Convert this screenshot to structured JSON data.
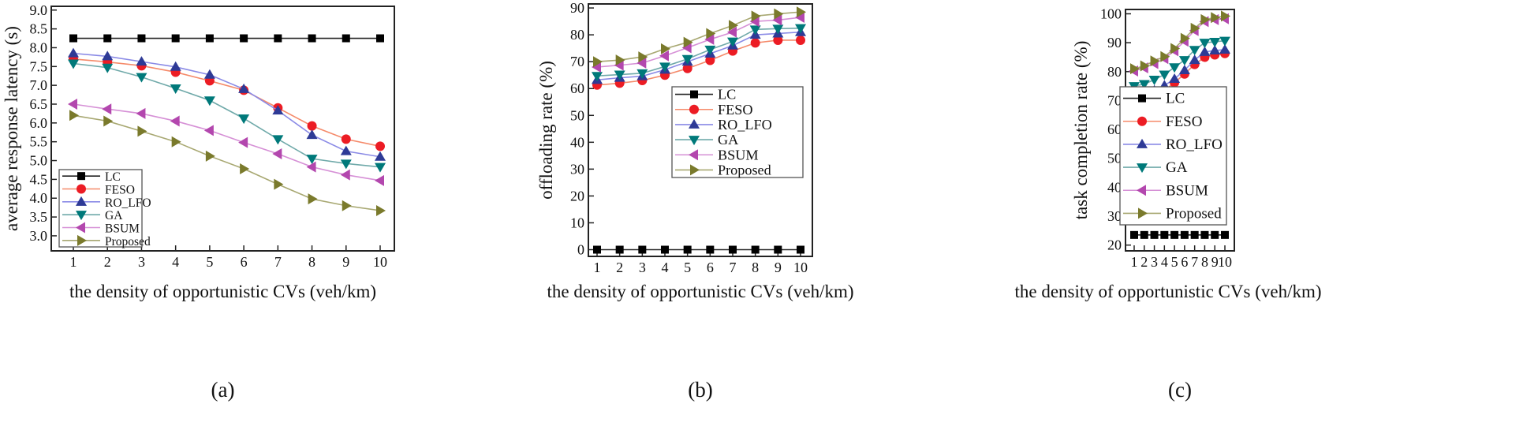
{
  "series_styles": {
    "LC": {
      "line": "#222222",
      "marker": "#000000",
      "shape": "square"
    },
    "FESO": {
      "line": "#f58a6a",
      "marker": "#ec1c24",
      "shape": "circle"
    },
    "RO_LFO": {
      "line": "#8a8ae6",
      "marker": "#2e3a96",
      "shape": "up"
    },
    "GA": {
      "line": "#6fa9a9",
      "marker": "#00797a",
      "shape": "down"
    },
    "BSUM": {
      "line": "#d690d6",
      "marker": "#b347ae",
      "shape": "left"
    },
    "Proposed": {
      "line": "#a8a872",
      "marker": "#7a7a2c",
      "shape": "right"
    }
  },
  "chart_data": [
    {
      "type": "line",
      "panel_label": "(a)",
      "xlabel": "the density of opportunistic   CVs (veh/km)",
      "ylabel": "average response latency (s)",
      "x": [
        1,
        2,
        3,
        4,
        5,
        6,
        7,
        8,
        9,
        10
      ],
      "xticks": [
        "1",
        "2",
        "3",
        "4",
        "5",
        "6",
        "7",
        "8",
        "9",
        "10"
      ],
      "yticks": [
        "3.0",
        "3.5",
        "4.0",
        "4.5",
        "5.0",
        "5.5",
        "6.0",
        "6.5",
        "7.0",
        "7.5",
        "8.0",
        "8.5",
        "9.0"
      ],
      "ylim": [
        2.6,
        9.1
      ],
      "legend_position": "bottom-left",
      "series": [
        {
          "name": "LC",
          "values": [
            8.25,
            8.25,
            8.25,
            8.25,
            8.25,
            8.25,
            8.25,
            8.25,
            8.25,
            8.25
          ]
        },
        {
          "name": "FESO",
          "values": [
            7.7,
            7.62,
            7.52,
            7.35,
            7.12,
            6.87,
            6.4,
            5.92,
            5.57,
            5.38
          ]
        },
        {
          "name": "RO_LFO",
          "values": [
            7.85,
            7.77,
            7.63,
            7.49,
            7.28,
            6.9,
            6.33,
            5.68,
            5.25,
            5.1
          ]
        },
        {
          "name": "GA",
          "values": [
            7.58,
            7.47,
            7.22,
            6.92,
            6.6,
            6.12,
            5.57,
            5.05,
            4.92,
            4.83
          ]
        },
        {
          "name": "BSUM",
          "values": [
            6.5,
            6.37,
            6.25,
            6.05,
            5.8,
            5.48,
            5.18,
            4.83,
            4.62,
            4.47
          ]
        },
        {
          "name": "Proposed",
          "values": [
            6.2,
            6.05,
            5.78,
            5.5,
            5.12,
            4.78,
            4.37,
            3.98,
            3.8,
            3.67
          ]
        }
      ]
    },
    {
      "type": "line",
      "panel_label": "(b)",
      "xlabel": "the density of opportunistic   CVs (veh/km)",
      "ylabel": "offloading rate (%)",
      "x": [
        1,
        2,
        3,
        4,
        5,
        6,
        7,
        8,
        9,
        10
      ],
      "xticks": [
        "1",
        "2",
        "3",
        "4",
        "5",
        "6",
        "7",
        "8",
        "9",
        "10"
      ],
      "yticks": [
        "0",
        "10",
        "20",
        "30",
        "40",
        "50",
        "60",
        "70",
        "80",
        "90"
      ],
      "ylim": [
        -2.5,
        91.5
      ],
      "legend_position": "center-right",
      "series": [
        {
          "name": "LC",
          "values": [
            0,
            0,
            0,
            0,
            0,
            0,
            0,
            0,
            0,
            0
          ]
        },
        {
          "name": "FESO",
          "values": [
            61.3,
            62,
            63,
            65,
            67.5,
            70.5,
            74,
            77,
            78,
            78
          ]
        },
        {
          "name": "RO_LFO",
          "values": [
            63.2,
            64,
            64.6,
            67,
            70,
            73,
            76,
            80,
            80.5,
            81
          ]
        },
        {
          "name": "GA",
          "values": [
            64.7,
            65.2,
            65.7,
            68.2,
            71,
            74.5,
            77.5,
            82,
            82.3,
            82.5
          ]
        },
        {
          "name": "BSUM",
          "values": [
            68,
            68.7,
            69.5,
            72.2,
            75.2,
            78.3,
            81,
            85,
            85.5,
            86.5
          ]
        },
        {
          "name": "Proposed",
          "values": [
            70,
            70.6,
            71.8,
            74.8,
            77.2,
            80.5,
            83.5,
            87,
            87.8,
            88.5
          ]
        }
      ]
    },
    {
      "type": "line",
      "panel_label": "(c)",
      "xlabel": "the density of opportunistic CVs (veh/km)",
      "ylabel": "task completion rate (%)",
      "x": [
        1,
        2,
        3,
        4,
        5,
        6,
        7,
        8,
        9,
        10
      ],
      "xticks": [
        "1",
        "2",
        "3",
        "4",
        "5",
        "6",
        "7",
        "8",
        "9",
        "10"
      ],
      "yticks": [
        "20",
        "30",
        "40",
        "50",
        "60",
        "70",
        "80",
        "90",
        "100"
      ],
      "ylim": [
        18,
        101.5
      ],
      "legend_position": "center-right",
      "series": [
        {
          "name": "LC",
          "values": [
            23.5,
            23.5,
            23.5,
            23.5,
            23.5,
            23.5,
            23.5,
            23.5,
            23.5,
            23.5
          ]
        },
        {
          "name": "FESO",
          "values": [
            69.8,
            70.7,
            71.8,
            73.5,
            76.2,
            79.2,
            82.5,
            85,
            85.8,
            86.3
          ]
        },
        {
          "name": "RO_LFO",
          "values": [
            71.8,
            72.3,
            73.5,
            75.2,
            77.5,
            80.5,
            84,
            86.8,
            87.3,
            87.6
          ]
        },
        {
          "name": "GA",
          "values": [
            75,
            75.7,
            77.2,
            79,
            81.5,
            84,
            87.5,
            90,
            90.3,
            90.7
          ]
        },
        {
          "name": "BSUM",
          "values": [
            80.2,
            81.3,
            82.8,
            84.5,
            87.2,
            90.5,
            94.2,
            97.3,
            98,
            98.3
          ]
        },
        {
          "name": "Proposed",
          "values": [
            81,
            82,
            83.7,
            85.2,
            88,
            91.5,
            95,
            98,
            98.7,
            99.2
          ]
        }
      ]
    }
  ]
}
